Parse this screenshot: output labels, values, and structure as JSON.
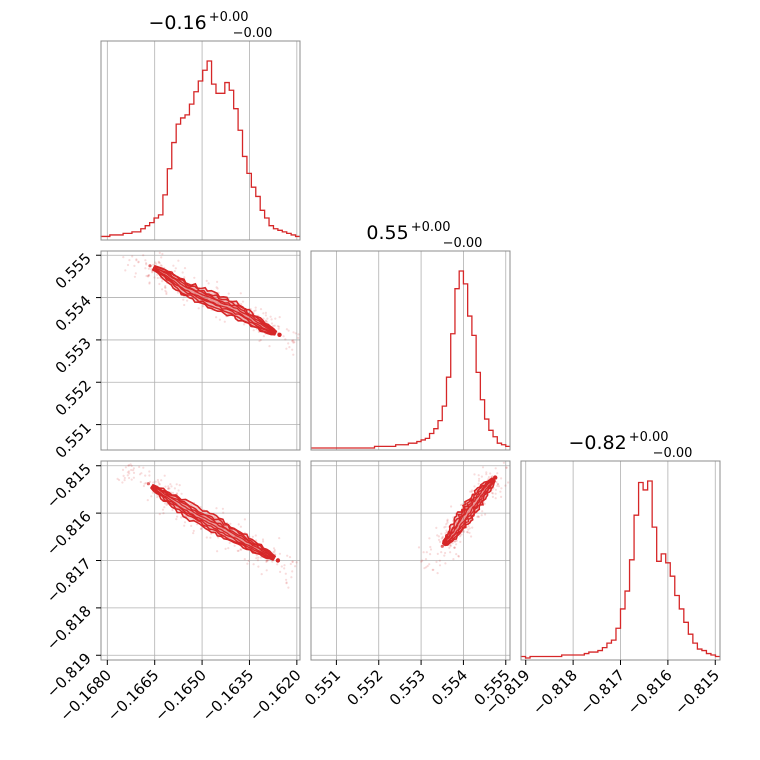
{
  "chart_data": {
    "type": "corner",
    "color": "#d62728",
    "parameters": [
      {
        "title": {
          "main": "−0.16",
          "sup": "+0.00",
          "sub": "−0.00"
        },
        "range": [
          -0.1682,
          -0.1619
        ],
        "ticks": [
          -0.168,
          -0.1665,
          -0.165,
          -0.1635,
          -0.162
        ],
        "tick_labels": [
          "−0.1680",
          "−0.1665",
          "−0.1650",
          "−0.1635",
          "−0.1620"
        ],
        "hist": [
          1,
          1,
          2,
          2,
          2,
          3,
          3,
          4,
          4,
          6,
          8,
          10,
          13,
          15,
          28,
          45,
          62,
          74,
          78,
          80,
          87,
          95,
          102,
          109,
          115,
          100,
          94,
          94,
          101,
          96,
          84,
          70,
          53,
          42,
          33,
          27,
          18,
          13,
          8,
          6,
          5,
          4,
          3,
          2,
          1
        ]
      },
      {
        "title": {
          "main": "0.55",
          "sup": "+0.00",
          "sub": "−0.00"
        },
        "range": [
          0.5504,
          0.5551
        ],
        "ticks": [
          0.551,
          0.552,
          0.553,
          0.554,
          0.555
        ],
        "tick_labels": [
          "0.551",
          "0.552",
          "0.553",
          "0.554",
          "0.555"
        ],
        "hist": [
          0,
          0,
          0,
          0,
          0,
          0,
          0,
          0,
          0,
          0,
          0,
          0,
          0,
          0,
          0,
          1,
          1,
          1,
          1,
          1,
          2,
          2,
          2,
          3,
          3,
          4,
          5,
          6,
          9,
          12,
          17,
          26,
          44,
          71,
          99,
          110,
          102,
          82,
          70,
          47,
          30,
          18,
          11,
          7,
          3,
          2,
          1
        ]
      },
      {
        "title": {
          "main": "−0.82",
          "sup": "+0.00",
          "sub": "−0.00"
        },
        "range": [
          -0.8191,
          -0.8149
        ],
        "ticks": [
          -0.819,
          -0.818,
          -0.817,
          -0.816,
          -0.815
        ],
        "tick_labels": [
          "−0.819",
          "−0.818",
          "−0.817",
          "−0.816",
          "−0.815"
        ],
        "hist": [
          1,
          0,
          1,
          1,
          1,
          1,
          1,
          1,
          1,
          2,
          2,
          2,
          2,
          2,
          3,
          4,
          4,
          5,
          7,
          10,
          12,
          20,
          33,
          45,
          66,
          96,
          118,
          113,
          119,
          88,
          65,
          70,
          64,
          55,
          42,
          33,
          24,
          16,
          10,
          6,
          5,
          3,
          2,
          1
        ]
      }
    ],
    "pairs": [
      {
        "row": 1,
        "col": 0,
        "core": [
          [
            -0.16665,
            0.55475
          ],
          [
            -0.16615,
            0.55455
          ],
          [
            -0.1655,
            0.5542
          ],
          [
            -0.16475,
            0.55395
          ],
          [
            -0.1639,
            0.5537
          ],
          [
            -0.16305,
            0.5533
          ],
          [
            -0.16255,
            0.55312
          ]
        ],
        "spread": [
          0.00018,
          0.00013
        ]
      },
      {
        "row": 2,
        "col": 0,
        "core": [
          [
            -0.1667,
            -0.81538
          ],
          [
            -0.166,
            -0.8157
          ],
          [
            -0.1653,
            -0.816
          ],
          [
            -0.1645,
            -0.81628
          ],
          [
            -0.1638,
            -0.81655
          ],
          [
            -0.163,
            -0.81685
          ],
          [
            -0.1626,
            -0.817
          ]
        ],
        "spread": [
          0.00018,
          0.00013
        ]
      },
      {
        "row": 2,
        "col": 1,
        "core": [
          [
            0.5535,
            -0.8167
          ],
          [
            0.55375,
            -0.81645
          ],
          [
            0.554,
            -0.81612
          ],
          [
            0.55425,
            -0.8158
          ],
          [
            0.5545,
            -0.8155
          ],
          [
            0.55475,
            -0.81525
          ]
        ],
        "spread": [
          0.00012,
          0.0001
        ]
      }
    ],
    "grid": true
  }
}
